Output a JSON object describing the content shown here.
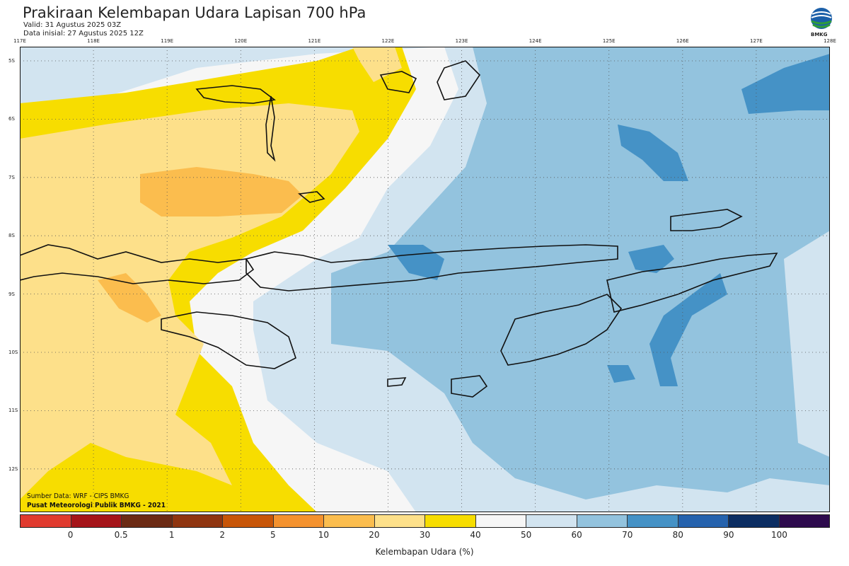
{
  "header": {
    "title": "Prakiraan Kelembapan Udara Lapisan 700 hPa",
    "valid": "Valid: 31 Agustus 2025 03Z",
    "initial": "Data inisial: 27 Agustus 2025 12Z"
  },
  "logo": {
    "text": "BMKG"
  },
  "map": {
    "lon_labels": [
      "117E",
      "118E",
      "119E",
      "120E",
      "121E",
      "122E",
      "123E",
      "124E",
      "125E",
      "126E",
      "127E",
      "128E"
    ],
    "lat_labels": [
      "5S",
      "6S",
      "7S",
      "8S",
      "9S",
      "10S",
      "11S",
      "12S"
    ]
  },
  "credits": {
    "source": "Sumber Data: WRF - CIPS BMKG",
    "org": "Pusat Meteorologi Publik BMKG - 2021"
  },
  "colorbar": {
    "colors": [
      "#e03a2e",
      "#a51419",
      "#6b2a14",
      "#8f3510",
      "#c75508",
      "#f4922e",
      "#fbbd4e",
      "#fde08a",
      "#f7dd00",
      "#f6f6f6",
      "#d2e4f0",
      "#93c3de",
      "#4592c6",
      "#2562ad",
      "#0b2d62",
      "#2d0a4d"
    ],
    "labels": [
      "0",
      "0.5",
      "1",
      "2",
      "5",
      "10",
      "20",
      "30",
      "40",
      "50",
      "60",
      "70",
      "80",
      "90",
      "100"
    ],
    "title": "Kelembapan Udara (%)"
  }
}
